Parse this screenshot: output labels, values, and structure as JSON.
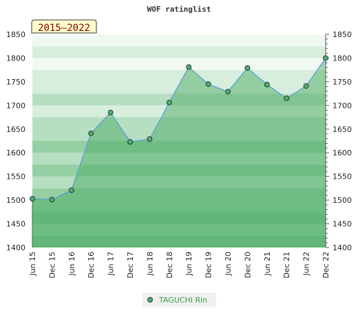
{
  "chart_data": {
    "type": "area",
    "title": "WOF ratinglist",
    "badge": "2015–2022",
    "categories": [
      "Jun 15",
      "Dec 15",
      "Jun 16",
      "Dec 16",
      "Jun 17",
      "Dec 17",
      "Jun 18",
      "Dec 18",
      "Jun 19",
      "Dec 19",
      "Jun 20",
      "Dec 20",
      "Jun 21",
      "Dec 21",
      "Jun 22",
      "Dec 22"
    ],
    "series": [
      {
        "name": "TAGUCHI Rin",
        "values": [
          1503,
          1501,
          1521,
          1641,
          1685,
          1623,
          1629,
          1706,
          1781,
          1745,
          1729,
          1779,
          1744,
          1715,
          1741,
          1800
        ]
      }
    ],
    "ylim": [
      1400,
      1850
    ],
    "yticks": [
      1400,
      1450,
      1500,
      1550,
      1600,
      1650,
      1700,
      1750,
      1800,
      1850
    ],
    "band_colors": [
      "#80c493",
      "#95cfa4",
      "#b6deC1",
      "#d8eedd",
      "#f0f8f2"
    ],
    "line_color": "#5b9fd6",
    "marker_color": "#4caf6e",
    "legend_position": "bottom-center",
    "grid": true
  }
}
